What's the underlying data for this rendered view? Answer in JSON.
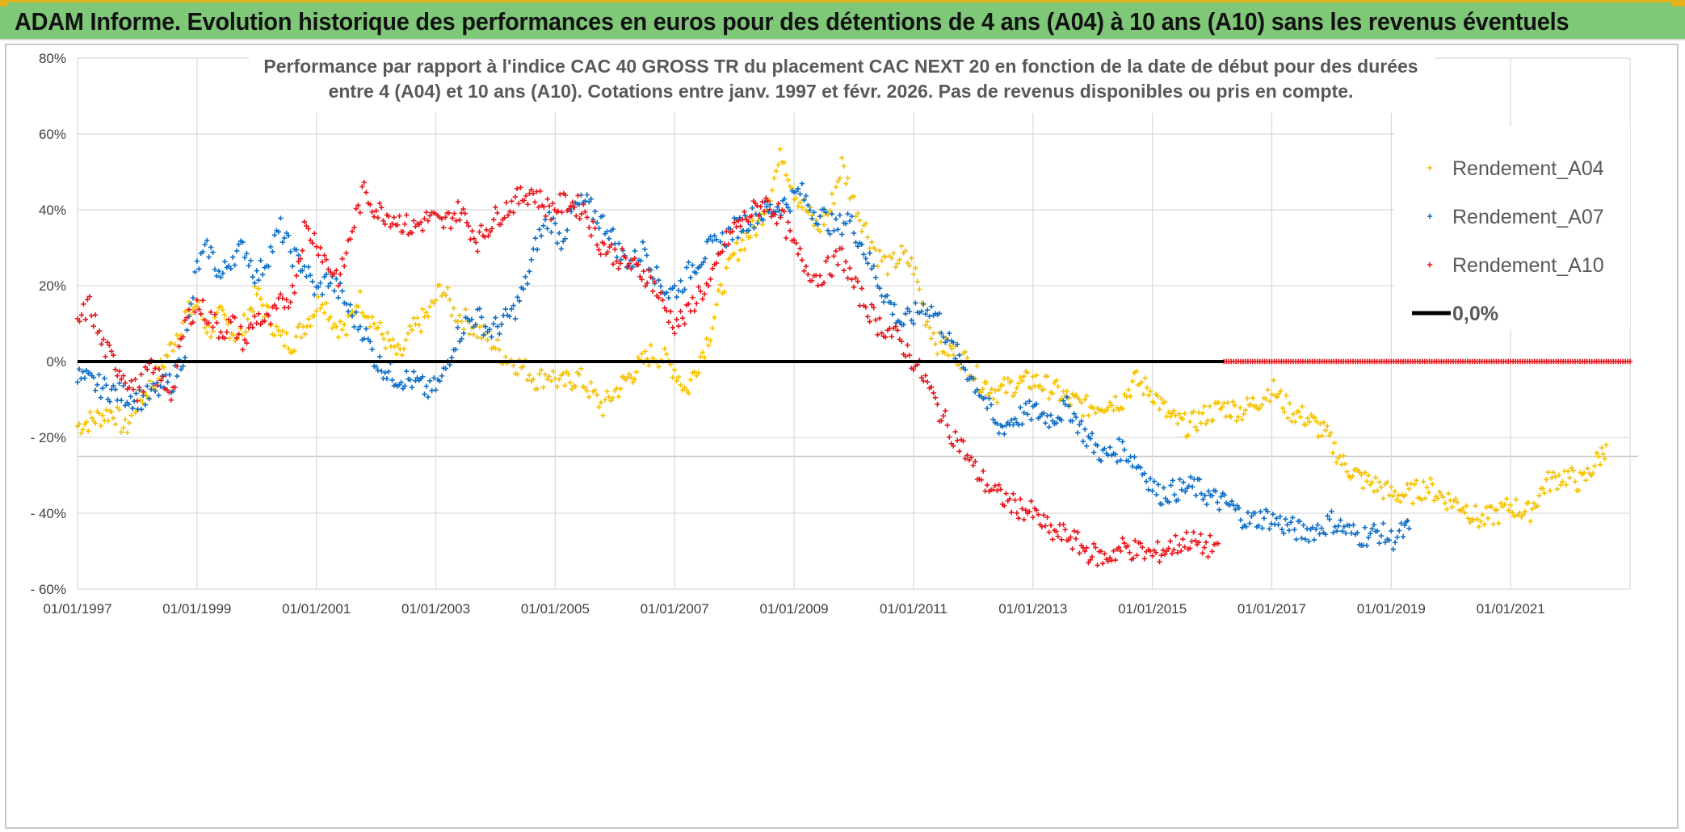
{
  "header": {
    "title": "ADAM Informe. Evolution historique des performances en euros pour des détentions de 4 ans (A04) à 10 ans (A10) sans les revenus éventuels"
  },
  "colors": {
    "banner": "#7ec878",
    "a04": "#f5c200",
    "a07": "#0f6fc6",
    "a10": "#e8161b",
    "zero_line": "#000000",
    "grid": "#d9d9d9"
  },
  "chart_data": {
    "type": "scatter",
    "title_lines": [
      "Performance par rapport à l'indice CAC 40 GROSS TR  du placement CAC NEXT 20 en fonction de la date de début pour des durées",
      "entre 4 (A04) et 10 ans (A10). Cotations entre janv. 1997 et févr. 2026. Pas de revenus disponibles ou pris en compte."
    ],
    "xlabel": "",
    "ylabel": "",
    "ylim": [
      -60,
      80
    ],
    "y_ticks": [
      80,
      60,
      40,
      20,
      0,
      -20,
      -40,
      -60
    ],
    "y_tick_labels": [
      "80%",
      "60%",
      "40%",
      "20%",
      "0%",
      "- 20%",
      "- 40%",
      "- 60%"
    ],
    "x_tick_labels": [
      "01/01/1997",
      "01/01/1999",
      "01/01/2001",
      "01/01/2003",
      "01/01/2005",
      "01/01/2007",
      "01/01/2009",
      "01/01/2011",
      "01/01/2013",
      "01/01/2015",
      "01/01/2017",
      "01/01/2019",
      "01/01/2021"
    ],
    "x_range_years": [
      1997.0,
      2023.0
    ],
    "legend_position": "top-right",
    "legend": [
      "Rendement_A04",
      "Rendement_A07",
      "Rendement_A10",
      "0,0%"
    ],
    "series": [
      {
        "name": "Rendement_A04",
        "color_key": "a04",
        "points": [
          [
            1997.0,
            -17
          ],
          [
            1997.3,
            -15
          ],
          [
            1997.6,
            -13
          ],
          [
            1997.8,
            -18
          ],
          [
            1998.0,
            -11
          ],
          [
            1998.3,
            -5
          ],
          [
            1998.6,
            5
          ],
          [
            1998.8,
            12
          ],
          [
            1999.0,
            15
          ],
          [
            1999.2,
            8
          ],
          [
            1999.4,
            12
          ],
          [
            1999.7,
            6
          ],
          [
            2000.0,
            18
          ],
          [
            2000.2,
            12
          ],
          [
            2000.4,
            6
          ],
          [
            2000.6,
            5
          ],
          [
            2000.9,
            12
          ],
          [
            2001.1,
            17
          ],
          [
            2001.3,
            10
          ],
          [
            2001.5,
            8
          ],
          [
            2001.7,
            17
          ],
          [
            2001.9,
            12
          ],
          [
            2002.1,
            7
          ],
          [
            2002.4,
            1
          ],
          [
            2002.6,
            8
          ],
          [
            2002.9,
            13
          ],
          [
            2003.1,
            20
          ],
          [
            2003.3,
            13
          ],
          [
            2003.5,
            11
          ],
          [
            2003.7,
            8
          ],
          [
            2003.9,
            6
          ],
          [
            2004.1,
            2
          ],
          [
            2004.3,
            0
          ],
          [
            2004.5,
            -2
          ],
          [
            2004.7,
            -5
          ],
          [
            2004.9,
            -3
          ],
          [
            2005.1,
            -6
          ],
          [
            2005.4,
            -4
          ],
          [
            2005.6,
            -8
          ],
          [
            2005.8,
            -12
          ],
          [
            2006.0,
            -8
          ],
          [
            2006.3,
            -3
          ],
          [
            2006.6,
            2
          ],
          [
            2006.8,
            1
          ],
          [
            2007.0,
            -2
          ],
          [
            2007.2,
            -8
          ],
          [
            2007.4,
            0
          ],
          [
            2007.6,
            8
          ],
          [
            2007.8,
            20
          ],
          [
            2008.0,
            28
          ],
          [
            2008.2,
            33
          ],
          [
            2008.4,
            36
          ],
          [
            2008.6,
            45
          ],
          [
            2008.8,
            55
          ],
          [
            2009.0,
            45
          ],
          [
            2009.2,
            40
          ],
          [
            2009.4,
            35
          ],
          [
            2009.6,
            40
          ],
          [
            2009.8,
            52
          ],
          [
            2010.0,
            42
          ],
          [
            2010.2,
            35
          ],
          [
            2010.4,
            28
          ],
          [
            2010.6,
            25
          ],
          [
            2010.8,
            28
          ],
          [
            2011.0,
            25
          ],
          [
            2011.2,
            12
          ],
          [
            2011.4,
            5
          ],
          [
            2011.7,
            2
          ],
          [
            2011.9,
            0
          ],
          [
            2012.1,
            -5
          ],
          [
            2012.4,
            -8
          ],
          [
            2012.7,
            -6
          ],
          [
            2013.0,
            -5
          ],
          [
            2013.3,
            -7
          ],
          [
            2013.6,
            -10
          ],
          [
            2013.9,
            -12
          ],
          [
            2014.2,
            -11
          ],
          [
            2014.5,
            -10
          ],
          [
            2014.7,
            -5
          ],
          [
            2015.0,
            -8
          ],
          [
            2015.3,
            -15
          ],
          [
            2015.6,
            -17
          ],
          [
            2015.9,
            -14
          ],
          [
            2016.2,
            -12
          ],
          [
            2016.5,
            -13
          ],
          [
            2016.8,
            -10
          ],
          [
            2017.0,
            -7
          ],
          [
            2017.3,
            -13
          ],
          [
            2017.6,
            -15
          ],
          [
            2017.9,
            -19
          ],
          [
            2018.2,
            -27
          ],
          [
            2018.5,
            -31
          ],
          [
            2018.8,
            -33
          ],
          [
            2019.0,
            -35
          ],
          [
            2019.3,
            -35
          ],
          [
            2019.6,
            -33
          ],
          [
            2019.9,
            -36
          ],
          [
            2020.2,
            -38
          ],
          [
            2020.5,
            -42
          ],
          [
            2020.8,
            -40
          ],
          [
            2021.0,
            -38
          ],
          [
            2021.3,
            -40
          ],
          [
            2021.6,
            -32
          ],
          [
            2021.9,
            -30
          ],
          [
            2022.2,
            -32
          ],
          [
            2022.5,
            -25
          ],
          [
            2022.6,
            -22
          ]
        ]
      },
      {
        "name": "Rendement_A07",
        "color_key": "a07",
        "points": [
          [
            1997.0,
            -4
          ],
          [
            1997.3,
            -6
          ],
          [
            1997.6,
            -8
          ],
          [
            1997.8,
            -9
          ],
          [
            1998.1,
            -10
          ],
          [
            1998.3,
            -8
          ],
          [
            1998.6,
            -5
          ],
          [
            1998.8,
            3
          ],
          [
            1999.0,
            25
          ],
          [
            1999.2,
            30
          ],
          [
            1999.4,
            22
          ],
          [
            1999.6,
            28
          ],
          [
            1999.8,
            30
          ],
          [
            2000.0,
            22
          ],
          [
            2000.2,
            28
          ],
          [
            2000.4,
            35
          ],
          [
            2000.6,
            28
          ],
          [
            2000.8,
            25
          ],
          [
            2001.0,
            18
          ],
          [
            2001.2,
            22
          ],
          [
            2001.4,
            18
          ],
          [
            2001.6,
            12
          ],
          [
            2001.8,
            8
          ],
          [
            2002.0,
            0
          ],
          [
            2002.3,
            -4
          ],
          [
            2002.6,
            -5
          ],
          [
            2002.9,
            -8
          ],
          [
            2003.1,
            -5
          ],
          [
            2003.3,
            5
          ],
          [
            2003.5,
            10
          ],
          [
            2003.7,
            12
          ],
          [
            2003.9,
            8
          ],
          [
            2004.1,
            10
          ],
          [
            2004.3,
            13
          ],
          [
            2004.5,
            20
          ],
          [
            2004.7,
            32
          ],
          [
            2004.9,
            38
          ],
          [
            2005.1,
            32
          ],
          [
            2005.3,
            40
          ],
          [
            2005.5,
            42
          ],
          [
            2005.7,
            38
          ],
          [
            2005.9,
            35
          ],
          [
            2006.1,
            28
          ],
          [
            2006.3,
            26
          ],
          [
            2006.5,
            30
          ],
          [
            2006.7,
            22
          ],
          [
            2006.9,
            18
          ],
          [
            2007.1,
            20
          ],
          [
            2007.3,
            25
          ],
          [
            2007.6,
            30
          ],
          [
            2007.8,
            32
          ],
          [
            2008.0,
            35
          ],
          [
            2008.3,
            38
          ],
          [
            2008.6,
            40
          ],
          [
            2008.9,
            42
          ],
          [
            2009.1,
            45
          ],
          [
            2009.3,
            40
          ],
          [
            2009.5,
            38
          ],
          [
            2009.7,
            35
          ],
          [
            2009.9,
            38
          ],
          [
            2010.1,
            32
          ],
          [
            2010.3,
            25
          ],
          [
            2010.5,
            18
          ],
          [
            2010.8,
            10
          ],
          [
            2011.0,
            12
          ],
          [
            2011.2,
            15
          ],
          [
            2011.4,
            12
          ],
          [
            2011.6,
            5
          ],
          [
            2011.8,
            0
          ],
          [
            2012.0,
            -5
          ],
          [
            2012.2,
            -10
          ],
          [
            2012.4,
            -18
          ],
          [
            2012.7,
            -15
          ],
          [
            2013.0,
            -13
          ],
          [
            2013.3,
            -15
          ],
          [
            2013.6,
            -12
          ],
          [
            2013.9,
            -20
          ],
          [
            2014.2,
            -25
          ],
          [
            2014.5,
            -23
          ],
          [
            2014.7,
            -26
          ],
          [
            2014.9,
            -30
          ],
          [
            2015.1,
            -35
          ],
          [
            2015.4,
            -34
          ],
          [
            2015.7,
            -33
          ],
          [
            2016.0,
            -36
          ],
          [
            2016.3,
            -38
          ],
          [
            2016.6,
            -42
          ],
          [
            2016.9,
            -41
          ],
          [
            2017.2,
            -43
          ],
          [
            2017.5,
            -45
          ],
          [
            2017.8,
            -44
          ],
          [
            2018.0,
            -42
          ],
          [
            2018.3,
            -45
          ],
          [
            2018.5,
            -46
          ],
          [
            2018.8,
            -45
          ],
          [
            2019.0,
            -47
          ],
          [
            2019.2,
            -45
          ],
          [
            2019.3,
            -44
          ]
        ]
      },
      {
        "name": "Rendement_A10",
        "color_key": "a10",
        "points": [
          [
            1997.0,
            10
          ],
          [
            1997.2,
            15
          ],
          [
            1997.4,
            5
          ],
          [
            1997.6,
            0
          ],
          [
            1997.8,
            -4
          ],
          [
            1998.0,
            -8
          ],
          [
            1998.2,
            -2
          ],
          [
            1998.4,
            -5
          ],
          [
            1998.6,
            -8
          ],
          [
            1998.8,
            10
          ],
          [
            1999.0,
            15
          ],
          [
            1999.2,
            12
          ],
          [
            1999.4,
            8
          ],
          [
            1999.6,
            10
          ],
          [
            1999.8,
            5
          ],
          [
            2000.0,
            12
          ],
          [
            2000.2,
            10
          ],
          [
            2000.4,
            15
          ],
          [
            2000.6,
            18
          ],
          [
            2000.8,
            35
          ],
          [
            2001.0,
            32
          ],
          [
            2001.2,
            25
          ],
          [
            2001.4,
            22
          ],
          [
            2001.6,
            35
          ],
          [
            2001.8,
            45
          ],
          [
            2002.0,
            40
          ],
          [
            2002.3,
            38
          ],
          [
            2002.6,
            35
          ],
          [
            2002.9,
            38
          ],
          [
            2003.1,
            36
          ],
          [
            2003.4,
            40
          ],
          [
            2003.7,
            32
          ],
          [
            2004.0,
            38
          ],
          [
            2004.3,
            42
          ],
          [
            2004.6,
            45
          ],
          [
            2004.9,
            40
          ],
          [
            2005.2,
            42
          ],
          [
            2005.5,
            40
          ],
          [
            2005.7,
            32
          ],
          [
            2006.0,
            28
          ],
          [
            2006.3,
            25
          ],
          [
            2006.6,
            22
          ],
          [
            2006.8,
            15
          ],
          [
            2007.0,
            10
          ],
          [
            2007.2,
            12
          ],
          [
            2007.4,
            18
          ],
          [
            2007.6,
            20
          ],
          [
            2007.8,
            30
          ],
          [
            2008.0,
            35
          ],
          [
            2008.2,
            38
          ],
          [
            2008.5,
            42
          ],
          [
            2008.8,
            38
          ],
          [
            2009.0,
            30
          ],
          [
            2009.2,
            25
          ],
          [
            2009.4,
            22
          ],
          [
            2009.6,
            25
          ],
          [
            2009.8,
            28
          ],
          [
            2010.0,
            20
          ],
          [
            2010.2,
            15
          ],
          [
            2010.4,
            10
          ],
          [
            2010.6,
            8
          ],
          [
            2010.8,
            5
          ],
          [
            2011.0,
            0
          ],
          [
            2011.2,
            -5
          ],
          [
            2011.4,
            -12
          ],
          [
            2011.6,
            -18
          ],
          [
            2011.8,
            -22
          ],
          [
            2012.0,
            -28
          ],
          [
            2012.2,
            -32
          ],
          [
            2012.4,
            -35
          ],
          [
            2012.7,
            -38
          ],
          [
            2013.0,
            -40
          ],
          [
            2013.3,
            -45
          ],
          [
            2013.6,
            -46
          ],
          [
            2013.9,
            -50
          ],
          [
            2014.2,
            -52
          ],
          [
            2014.5,
            -49
          ],
          [
            2014.8,
            -50
          ],
          [
            2015.0,
            -51
          ],
          [
            2015.3,
            -49
          ],
          [
            2015.6,
            -47
          ],
          [
            2015.9,
            -49
          ],
          [
            2016.1,
            -48
          ]
        ]
      },
      {
        "name": "Rendement_A10_zero_segment",
        "color_key": "a10",
        "segment_years": [
          2016.2,
          2023.0
        ],
        "value": 0
      }
    ]
  }
}
